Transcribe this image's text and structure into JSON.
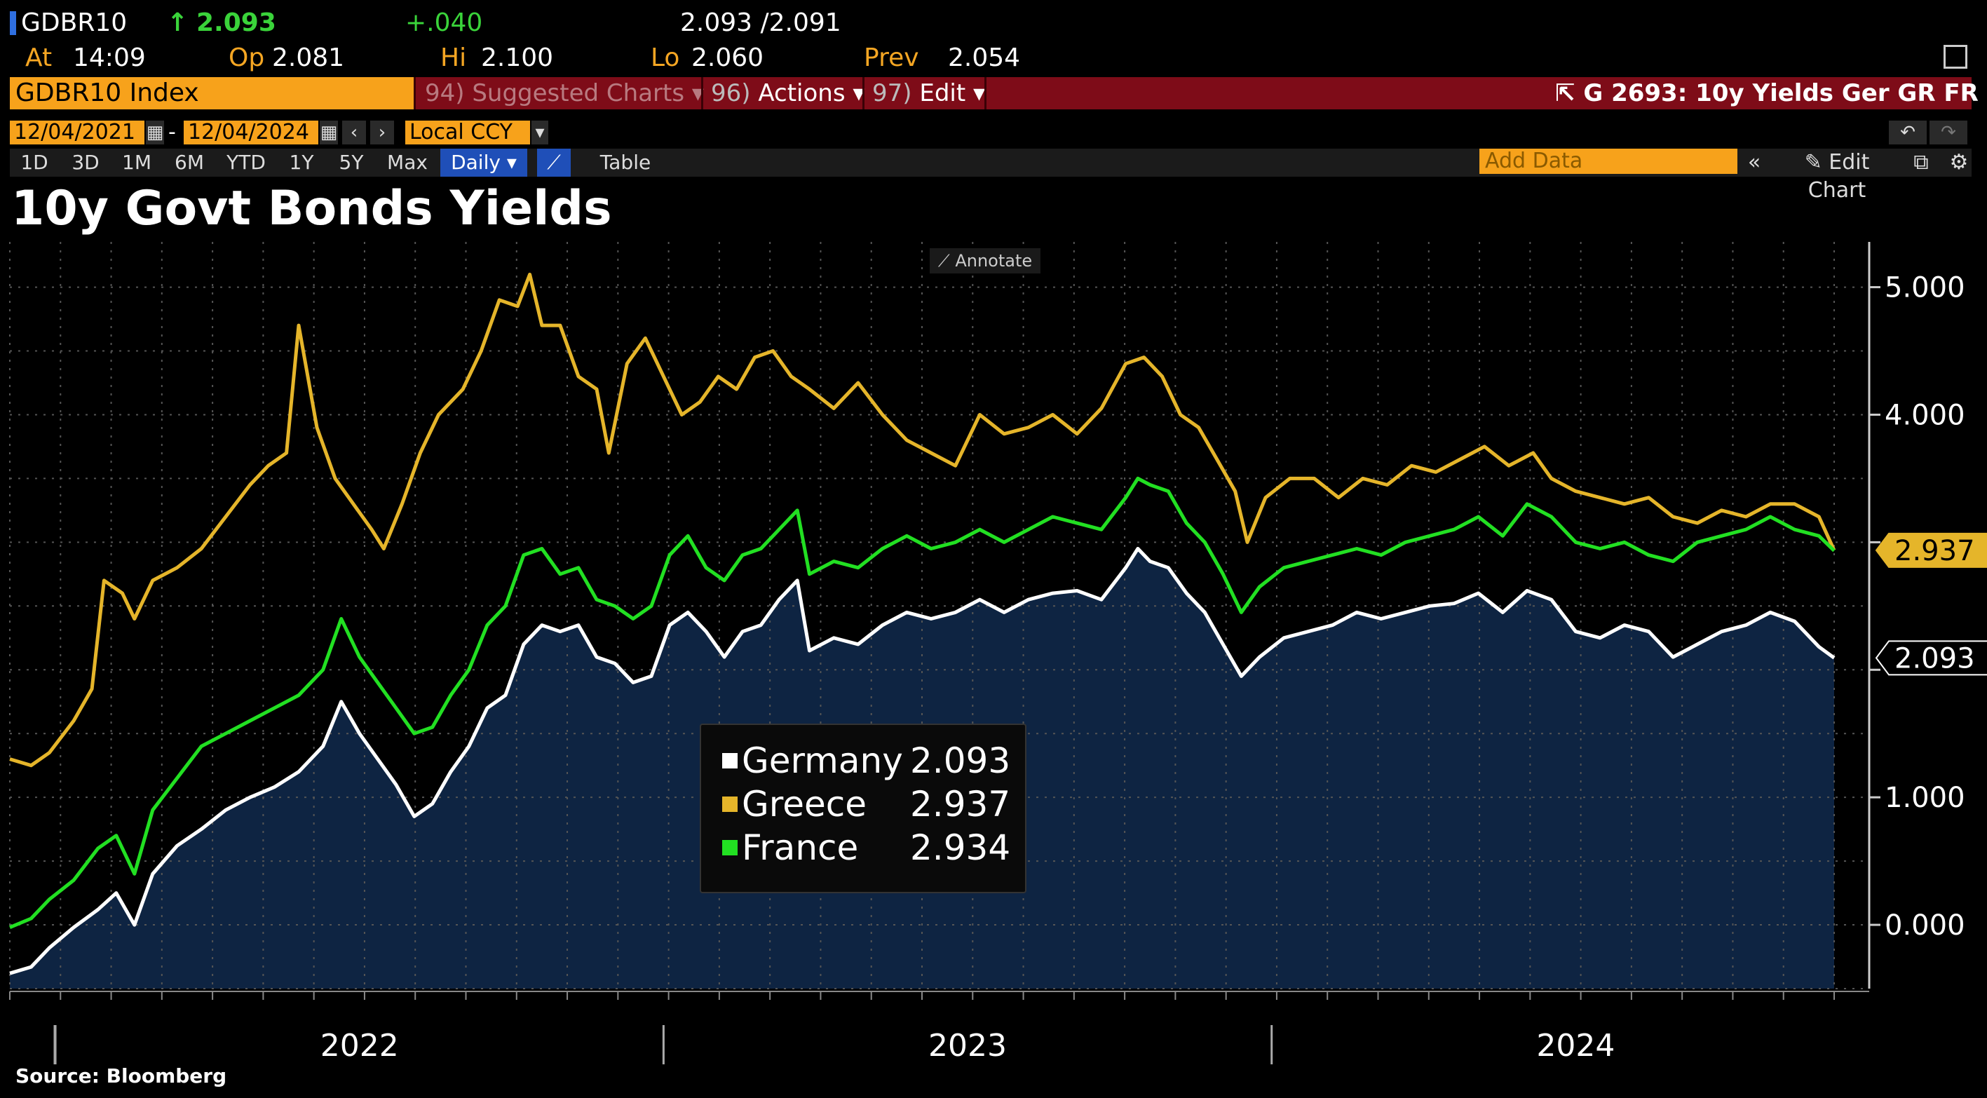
{
  "header": {
    "ticker": "GDBR10",
    "last_arrow": "↑",
    "last": "2.093",
    "change": "+.040",
    "bid_ask": "2.093 /2.091",
    "at_label": "At",
    "at_time": "14:09",
    "op_label": "Op",
    "op": "2.081",
    "hi_label": "Hi",
    "hi": "2.100",
    "lo_label": "Lo",
    "lo": "2.060",
    "prev_label": "Prev",
    "prev": "2.054"
  },
  "command_bar": {
    "security": "GDBR10 Index",
    "suggested_num": "94)",
    "suggested": "Suggested Charts",
    "actions_num": "96)",
    "actions": "Actions",
    "edit_num": "97)",
    "edit": "Edit",
    "chart_id": "G 2693: 10y Yields Ger GR FR"
  },
  "date_row": {
    "start": "12/04/2021",
    "dash": "-",
    "end": "12/04/2024",
    "currency": "Local CCY"
  },
  "range_tabs": [
    "1D",
    "3D",
    "1M",
    "6M",
    "YTD",
    "1Y",
    "5Y",
    "Max"
  ],
  "frequency": "Daily",
  "table_label": "Table",
  "add_data_placeholder": "Add Data",
  "edit_chart": "Edit Chart",
  "annotate": "Annotate",
  "source": "Source: Bloomberg",
  "colors": {
    "germany": "#ffffff",
    "greece": "#e5b52a",
    "france": "#22e022",
    "area": "#0e2442",
    "grid": "#555555"
  },
  "chart_data": {
    "type": "line",
    "title": "10y Govt Bonds Yields",
    "x_range": [
      2021.925,
      2024.925
    ],
    "ylim": [
      -0.5,
      5.3
    ],
    "y_ticks": [
      0.0,
      1.0,
      2.0,
      3.0,
      4.0,
      5.0
    ],
    "y_tick_labels": [
      "0.000",
      "1.000",
      "",
      "",
      "4.000",
      "5.000"
    ],
    "x_tick_labels": [
      {
        "x": 2022.5,
        "label": "2022"
      },
      {
        "x": 2023.5,
        "label": "2023"
      },
      {
        "x": 2024.5,
        "label": "2024"
      }
    ],
    "x_dividers": [
      2022.0,
      2023.0,
      2024.0
    ],
    "series": [
      {
        "name": "Germany",
        "key": "germany",
        "last": "2.093",
        "area": true,
        "points": [
          [
            2021.925,
            -0.38
          ],
          [
            2021.96,
            -0.33
          ],
          [
            2021.99,
            -0.18
          ],
          [
            2022.03,
            -0.02
          ],
          [
            2022.07,
            0.12
          ],
          [
            2022.1,
            0.25
          ],
          [
            2022.13,
            0.0
          ],
          [
            2022.16,
            0.4
          ],
          [
            2022.2,
            0.62
          ],
          [
            2022.24,
            0.75
          ],
          [
            2022.28,
            0.9
          ],
          [
            2022.32,
            1.0
          ],
          [
            2022.36,
            1.08
          ],
          [
            2022.4,
            1.2
          ],
          [
            2022.44,
            1.4
          ],
          [
            2022.47,
            1.75
          ],
          [
            2022.5,
            1.5
          ],
          [
            2022.53,
            1.3
          ],
          [
            2022.56,
            1.1
          ],
          [
            2022.59,
            0.85
          ],
          [
            2022.62,
            0.95
          ],
          [
            2022.65,
            1.2
          ],
          [
            2022.68,
            1.4
          ],
          [
            2022.71,
            1.7
          ],
          [
            2022.74,
            1.8
          ],
          [
            2022.77,
            2.2
          ],
          [
            2022.8,
            2.35
          ],
          [
            2022.83,
            2.3
          ],
          [
            2022.86,
            2.35
          ],
          [
            2022.89,
            2.1
          ],
          [
            2022.92,
            2.05
          ],
          [
            2022.95,
            1.9
          ],
          [
            2022.98,
            1.95
          ],
          [
            2023.01,
            2.35
          ],
          [
            2023.04,
            2.45
          ],
          [
            2023.07,
            2.3
          ],
          [
            2023.1,
            2.1
          ],
          [
            2023.13,
            2.3
          ],
          [
            2023.16,
            2.35
          ],
          [
            2023.19,
            2.55
          ],
          [
            2023.22,
            2.7
          ],
          [
            2023.24,
            2.15
          ],
          [
            2023.28,
            2.25
          ],
          [
            2023.32,
            2.2
          ],
          [
            2023.36,
            2.35
          ],
          [
            2023.4,
            2.45
          ],
          [
            2023.44,
            2.4
          ],
          [
            2023.48,
            2.45
          ],
          [
            2023.52,
            2.55
          ],
          [
            2023.56,
            2.45
          ],
          [
            2023.6,
            2.55
          ],
          [
            2023.64,
            2.6
          ],
          [
            2023.68,
            2.62
          ],
          [
            2023.72,
            2.55
          ],
          [
            2023.76,
            2.8
          ],
          [
            2023.78,
            2.95
          ],
          [
            2023.8,
            2.85
          ],
          [
            2023.83,
            2.8
          ],
          [
            2023.86,
            2.6
          ],
          [
            2023.89,
            2.45
          ],
          [
            2023.92,
            2.2
          ],
          [
            2023.95,
            1.95
          ],
          [
            2023.98,
            2.1
          ],
          [
            2024.02,
            2.25
          ],
          [
            2024.06,
            2.3
          ],
          [
            2024.1,
            2.35
          ],
          [
            2024.14,
            2.45
          ],
          [
            2024.18,
            2.4
          ],
          [
            2024.22,
            2.45
          ],
          [
            2024.26,
            2.5
          ],
          [
            2024.3,
            2.52
          ],
          [
            2024.34,
            2.6
          ],
          [
            2024.38,
            2.45
          ],
          [
            2024.42,
            2.62
          ],
          [
            2024.46,
            2.55
          ],
          [
            2024.5,
            2.3
          ],
          [
            2024.54,
            2.25
          ],
          [
            2024.58,
            2.35
          ],
          [
            2024.62,
            2.3
          ],
          [
            2024.66,
            2.1
          ],
          [
            2024.7,
            2.2
          ],
          [
            2024.74,
            2.3
          ],
          [
            2024.78,
            2.35
          ],
          [
            2024.82,
            2.45
          ],
          [
            2024.86,
            2.38
          ],
          [
            2024.9,
            2.18
          ],
          [
            2024.925,
            2.093
          ]
        ]
      },
      {
        "name": "Greece",
        "key": "greece",
        "last": "2.937",
        "area": false,
        "points": [
          [
            2021.925,
            1.3
          ],
          [
            2021.96,
            1.25
          ],
          [
            2021.99,
            1.35
          ],
          [
            2022.03,
            1.6
          ],
          [
            2022.06,
            1.85
          ],
          [
            2022.08,
            2.7
          ],
          [
            2022.11,
            2.6
          ],
          [
            2022.13,
            2.4
          ],
          [
            2022.16,
            2.7
          ],
          [
            2022.2,
            2.8
          ],
          [
            2022.24,
            2.95
          ],
          [
            2022.28,
            3.2
          ],
          [
            2022.32,
            3.45
          ],
          [
            2022.35,
            3.6
          ],
          [
            2022.38,
            3.7
          ],
          [
            2022.4,
            4.7
          ],
          [
            2022.43,
            3.9
          ],
          [
            2022.46,
            3.5
          ],
          [
            2022.49,
            3.3
          ],
          [
            2022.52,
            3.1
          ],
          [
            2022.54,
            2.95
          ],
          [
            2022.57,
            3.3
          ],
          [
            2022.6,
            3.7
          ],
          [
            2022.63,
            4.0
          ],
          [
            2022.67,
            4.2
          ],
          [
            2022.7,
            4.5
          ],
          [
            2022.73,
            4.9
          ],
          [
            2022.76,
            4.85
          ],
          [
            2022.78,
            5.1
          ],
          [
            2022.8,
            4.7
          ],
          [
            2022.83,
            4.7
          ],
          [
            2022.86,
            4.3
          ],
          [
            2022.89,
            4.2
          ],
          [
            2022.91,
            3.7
          ],
          [
            2022.94,
            4.4
          ],
          [
            2022.97,
            4.6
          ],
          [
            2023.0,
            4.3
          ],
          [
            2023.03,
            4.0
          ],
          [
            2023.06,
            4.1
          ],
          [
            2023.09,
            4.3
          ],
          [
            2023.12,
            4.2
          ],
          [
            2023.15,
            4.45
          ],
          [
            2023.18,
            4.5
          ],
          [
            2023.21,
            4.3
          ],
          [
            2023.24,
            4.2
          ],
          [
            2023.28,
            4.05
          ],
          [
            2023.32,
            4.25
          ],
          [
            2023.36,
            4.0
          ],
          [
            2023.4,
            3.8
          ],
          [
            2023.44,
            3.7
          ],
          [
            2023.48,
            3.6
          ],
          [
            2023.52,
            4.0
          ],
          [
            2023.56,
            3.85
          ],
          [
            2023.6,
            3.9
          ],
          [
            2023.64,
            4.0
          ],
          [
            2023.68,
            3.85
          ],
          [
            2023.72,
            4.05
          ],
          [
            2023.76,
            4.4
          ],
          [
            2023.79,
            4.45
          ],
          [
            2023.82,
            4.3
          ],
          [
            2023.85,
            4.0
          ],
          [
            2023.88,
            3.9
          ],
          [
            2023.91,
            3.65
          ],
          [
            2023.94,
            3.4
          ],
          [
            2023.96,
            3.0
          ],
          [
            2023.99,
            3.35
          ],
          [
            2024.03,
            3.5
          ],
          [
            2024.07,
            3.5
          ],
          [
            2024.11,
            3.35
          ],
          [
            2024.15,
            3.5
          ],
          [
            2024.19,
            3.45
          ],
          [
            2024.23,
            3.6
          ],
          [
            2024.27,
            3.55
          ],
          [
            2024.31,
            3.65
          ],
          [
            2024.35,
            3.75
          ],
          [
            2024.39,
            3.6
          ],
          [
            2024.43,
            3.7
          ],
          [
            2024.46,
            3.5
          ],
          [
            2024.5,
            3.4
          ],
          [
            2024.54,
            3.35
          ],
          [
            2024.58,
            3.3
          ],
          [
            2024.62,
            3.35
          ],
          [
            2024.66,
            3.2
          ],
          [
            2024.7,
            3.15
          ],
          [
            2024.74,
            3.25
          ],
          [
            2024.78,
            3.2
          ],
          [
            2024.82,
            3.3
          ],
          [
            2024.86,
            3.3
          ],
          [
            2024.9,
            3.2
          ],
          [
            2024.925,
            2.937
          ]
        ]
      },
      {
        "name": "France",
        "key": "france",
        "last": "2.934",
        "area": false,
        "points": [
          [
            2021.925,
            -0.02
          ],
          [
            2021.96,
            0.05
          ],
          [
            2021.99,
            0.2
          ],
          [
            2022.03,
            0.35
          ],
          [
            2022.07,
            0.6
          ],
          [
            2022.1,
            0.7
          ],
          [
            2022.13,
            0.4
          ],
          [
            2022.16,
            0.9
          ],
          [
            2022.2,
            1.15
          ],
          [
            2022.24,
            1.4
          ],
          [
            2022.28,
            1.5
          ],
          [
            2022.32,
            1.6
          ],
          [
            2022.36,
            1.7
          ],
          [
            2022.4,
            1.8
          ],
          [
            2022.44,
            2.0
          ],
          [
            2022.47,
            2.4
          ],
          [
            2022.5,
            2.1
          ],
          [
            2022.53,
            1.9
          ],
          [
            2022.56,
            1.7
          ],
          [
            2022.59,
            1.5
          ],
          [
            2022.62,
            1.55
          ],
          [
            2022.65,
            1.8
          ],
          [
            2022.68,
            2.0
          ],
          [
            2022.71,
            2.35
          ],
          [
            2022.74,
            2.5
          ],
          [
            2022.77,
            2.9
          ],
          [
            2022.8,
            2.95
          ],
          [
            2022.83,
            2.75
          ],
          [
            2022.86,
            2.8
          ],
          [
            2022.89,
            2.55
          ],
          [
            2022.92,
            2.5
          ],
          [
            2022.95,
            2.4
          ],
          [
            2022.98,
            2.5
          ],
          [
            2023.01,
            2.9
          ],
          [
            2023.04,
            3.05
          ],
          [
            2023.07,
            2.8
          ],
          [
            2023.1,
            2.7
          ],
          [
            2023.13,
            2.9
          ],
          [
            2023.16,
            2.95
          ],
          [
            2023.19,
            3.1
          ],
          [
            2023.22,
            3.25
          ],
          [
            2023.24,
            2.75
          ],
          [
            2023.28,
            2.85
          ],
          [
            2023.32,
            2.8
          ],
          [
            2023.36,
            2.95
          ],
          [
            2023.4,
            3.05
          ],
          [
            2023.44,
            2.95
          ],
          [
            2023.48,
            3.0
          ],
          [
            2023.52,
            3.1
          ],
          [
            2023.56,
            3.0
          ],
          [
            2023.6,
            3.1
          ],
          [
            2023.64,
            3.2
          ],
          [
            2023.68,
            3.15
          ],
          [
            2023.72,
            3.1
          ],
          [
            2023.76,
            3.35
          ],
          [
            2023.78,
            3.5
          ],
          [
            2023.8,
            3.45
          ],
          [
            2023.83,
            3.4
          ],
          [
            2023.86,
            3.15
          ],
          [
            2023.89,
            3.0
          ],
          [
            2023.92,
            2.75
          ],
          [
            2023.95,
            2.45
          ],
          [
            2023.98,
            2.65
          ],
          [
            2024.02,
            2.8
          ],
          [
            2024.06,
            2.85
          ],
          [
            2024.1,
            2.9
          ],
          [
            2024.14,
            2.95
          ],
          [
            2024.18,
            2.9
          ],
          [
            2024.22,
            3.0
          ],
          [
            2024.26,
            3.05
          ],
          [
            2024.3,
            3.1
          ],
          [
            2024.34,
            3.2
          ],
          [
            2024.38,
            3.05
          ],
          [
            2024.42,
            3.3
          ],
          [
            2024.46,
            3.2
          ],
          [
            2024.5,
            3.0
          ],
          [
            2024.54,
            2.95
          ],
          [
            2024.58,
            3.0
          ],
          [
            2024.62,
            2.9
          ],
          [
            2024.66,
            2.85
          ],
          [
            2024.7,
            3.0
          ],
          [
            2024.74,
            3.05
          ],
          [
            2024.78,
            3.1
          ],
          [
            2024.82,
            3.2
          ],
          [
            2024.86,
            3.1
          ],
          [
            2024.9,
            3.05
          ],
          [
            2024.925,
            2.934
          ]
        ]
      }
    ]
  }
}
